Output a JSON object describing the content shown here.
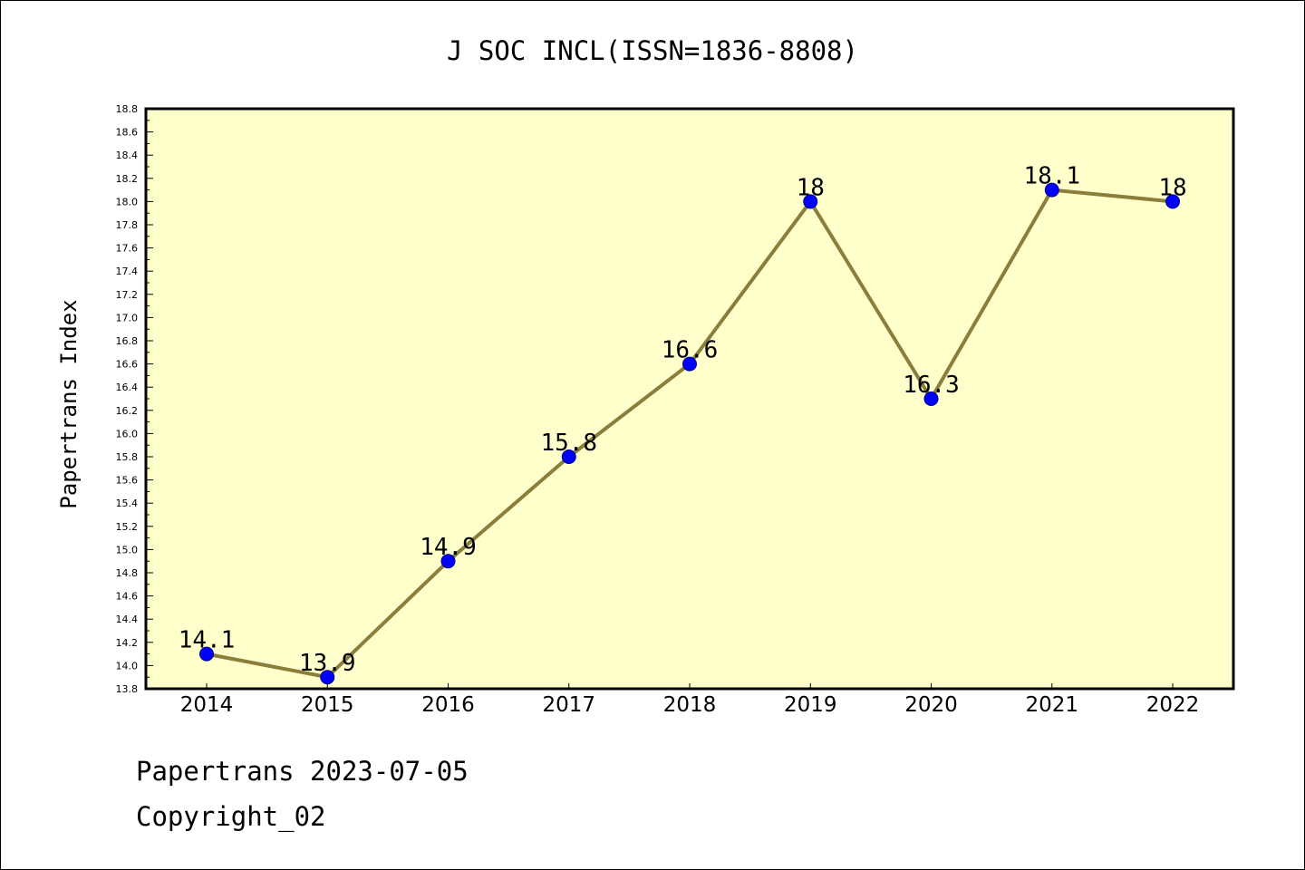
{
  "chart_data": {
    "type": "line",
    "title": "J SOC INCL(ISSN=1836-8808)",
    "xlabel": "",
    "ylabel": "Papertrans Index",
    "categories": [
      "2014",
      "2015",
      "2016",
      "2017",
      "2018",
      "2019",
      "2020",
      "2021",
      "2022"
    ],
    "series": [
      {
        "values": [
          14.1,
          13.9,
          14.9,
          15.8,
          16.6,
          18.0,
          16.3,
          18.1,
          18.0
        ],
        "labels": [
          "14.1",
          "13.9",
          "14.9",
          "15.8",
          "16.6",
          "18",
          "16.3",
          "18.1",
          "18"
        ]
      }
    ],
    "ylim": [
      13.8,
      18.8
    ],
    "yticks": [
      "13.8",
      "14.0",
      "14.2",
      "14.4",
      "14.6",
      "14.8",
      "15.0",
      "15.2",
      "15.4",
      "15.6",
      "15.8",
      "16.0",
      "16.2",
      "16.4",
      "16.6",
      "16.8",
      "17.0",
      "17.2",
      "17.4",
      "17.6",
      "17.8",
      "18.0",
      "18.2",
      "18.4",
      "18.6",
      "18.8"
    ],
    "grid": false,
    "colors": {
      "plot_background": "#ffffcc",
      "line": "#8b7d3a",
      "marker": "#0000ff"
    }
  },
  "footer": {
    "line1": "Papertrans 2023-07-05",
    "line2": "Copyright_02"
  }
}
